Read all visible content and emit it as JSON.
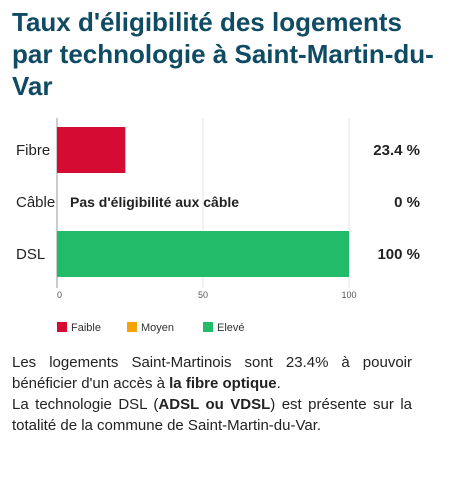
{
  "title": "Taux d'éligibilité des logements par technologie à Saint-Martin-du-Var",
  "chart_data": {
    "type": "bar",
    "orientation": "horizontal",
    "categories": [
      "Fibre",
      "Câble",
      "DSL"
    ],
    "series": [
      {
        "name": "",
        "values": [
          23.4,
          0,
          100
        ],
        "colors": [
          "#d50b34",
          "#d50b34",
          "#22bb6a"
        ]
      }
    ],
    "value_labels": [
      "23.4 %",
      "0 %",
      "100 %"
    ],
    "annotations": [
      {
        "category": "Câble",
        "text": "Pas d'éligibilité aux câble"
      }
    ],
    "xlim": [
      0,
      100
    ],
    "xticks": [
      0,
      50,
      100
    ],
    "xlabel": "",
    "ylabel": "",
    "grid": true,
    "legend": {
      "position": "bottom",
      "entries": [
        {
          "label": "Faible",
          "color": "#d50b34"
        },
        {
          "label": "Moyen",
          "color": "#f5a30c"
        },
        {
          "label": "Elevé",
          "color": "#22bb6a"
        }
      ]
    }
  },
  "description": {
    "p1_a": "Les logements Saint-Martinois sont 23.4% à pouvoir bénéficier d'un accès à ",
    "p1_b": "la fibre optique",
    "p1_c": ".",
    "p2_a": "La technologie DSL (",
    "p2_b": "ADSL ou VDSL",
    "p2_c": ") est présente sur la totalité de la commune de Saint-Martin-du-Var."
  }
}
